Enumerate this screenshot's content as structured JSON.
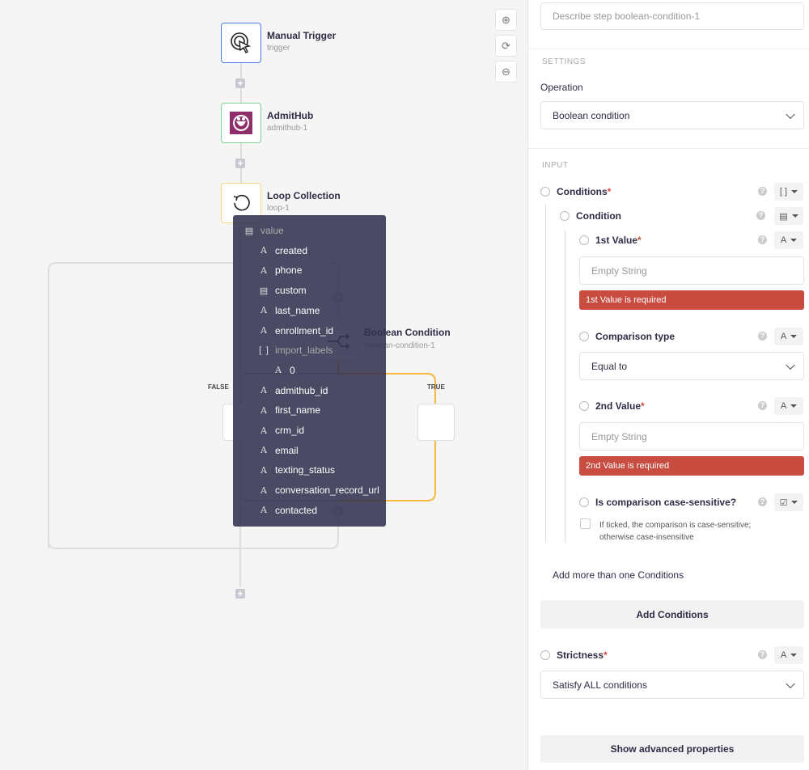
{
  "canvas": {
    "nodes": [
      {
        "title": "Manual Trigger",
        "subtitle": "trigger",
        "color": "#4a7fe0",
        "icon": "cursor-click-icon"
      },
      {
        "title": "AdmitHub",
        "subtitle": "admithub-1",
        "color": "#7ed39a",
        "icon": "admithub-logo-icon"
      },
      {
        "title": "Loop Collection",
        "subtitle": "loop-1",
        "color": "#f5d68a",
        "icon": "loop-icon"
      },
      {
        "title": "Boolean Condition",
        "subtitle": "boolean-condition-1",
        "color": "#ddd",
        "icon": "branch-icon"
      }
    ],
    "branch_false": "FALSE",
    "branch_true": "TRUE",
    "true_color": "#f5b942",
    "zoom_controls": [
      "zoom-in-icon",
      "reset-icon",
      "zoom-out-icon"
    ]
  },
  "menu": {
    "items": [
      {
        "label": "value",
        "icon": "table-icon",
        "indent": 0,
        "muted": true
      },
      {
        "label": "created",
        "icon": "text-icon",
        "indent": 1
      },
      {
        "label": "phone",
        "icon": "text-icon",
        "indent": 1
      },
      {
        "label": "custom",
        "icon": "table-icon",
        "indent": 1
      },
      {
        "label": "last_name",
        "icon": "text-icon",
        "indent": 1
      },
      {
        "label": "enrollment_id",
        "icon": "text-icon",
        "indent": 1
      },
      {
        "label": "import_labels",
        "icon": "array-icon",
        "indent": 1,
        "muted": true
      },
      {
        "label": "0",
        "icon": "text-icon",
        "indent": 2
      },
      {
        "label": "admithub_id",
        "icon": "text-icon",
        "indent": 1
      },
      {
        "label": "first_name",
        "icon": "text-icon",
        "indent": 1
      },
      {
        "label": "crm_id",
        "icon": "text-icon",
        "indent": 1
      },
      {
        "label": "email",
        "icon": "text-icon",
        "indent": 1
      },
      {
        "label": "texting_status",
        "icon": "text-icon",
        "indent": 1
      },
      {
        "label": "conversation_record_url",
        "icon": "text-icon",
        "indent": 1
      },
      {
        "label": "contacted",
        "icon": "text-icon",
        "indent": 1
      }
    ]
  },
  "panel": {
    "description_placeholder": "Describe step boolean-condition-1",
    "settings_label": "SETTINGS",
    "operation_label": "Operation",
    "operation_value": "Boolean condition",
    "input_label": "INPUT",
    "conditions_label": "Conditions",
    "condition_label": "Condition",
    "first_value_label": "1st Value",
    "first_value_placeholder": "Empty String",
    "first_value_error": "1st Value is required",
    "comparison_label": "Comparison type",
    "comparison_value": "Equal to",
    "second_value_label": "2nd Value",
    "second_value_placeholder": "Empty String",
    "second_value_error": "2nd Value is required",
    "case_label": "Is comparison case-sensitive?",
    "case_help_1": "If ticked, the comparison is case-sensitive;",
    "case_help_2": "otherwise case-insensitive",
    "add_more_label": "Add more than one Conditions",
    "add_button": "Add Conditions",
    "strictness_label": "Strictness",
    "strictness_value": "Satisfy ALL conditions",
    "advanced_button": "Show advanced properties",
    "required_mark": "*",
    "error_color": "#c94c40"
  }
}
